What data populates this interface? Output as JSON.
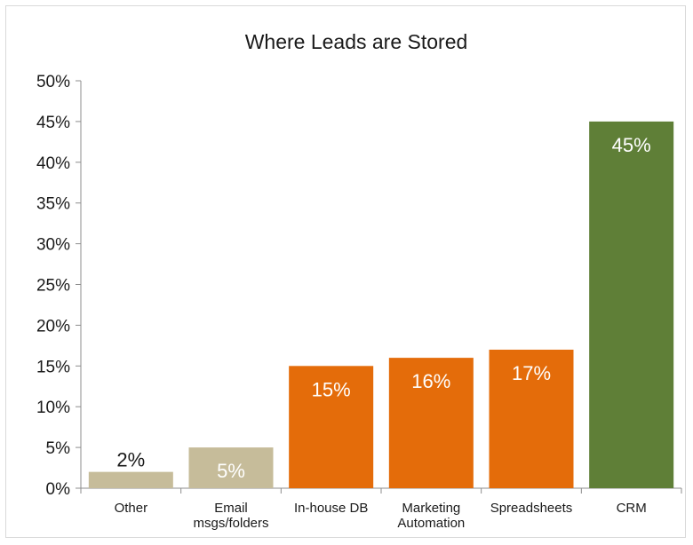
{
  "chart_data": {
    "type": "bar",
    "title": "Where Leads are Stored",
    "xlabel": "",
    "ylabel": "",
    "ylim": [
      0,
      50
    ],
    "y_ticks": [
      "0%",
      "5%",
      "10%",
      "15%",
      "20%",
      "25%",
      "30%",
      "35%",
      "40%",
      "45%",
      "50%"
    ],
    "categories": [
      [
        "Other"
      ],
      [
        "Email",
        "msgs/folders"
      ],
      [
        "In-house DB"
      ],
      [
        "Marketing",
        "Automation"
      ],
      [
        "Spreadsheets"
      ],
      [
        "CRM"
      ]
    ],
    "values": [
      2,
      5,
      15,
      16,
      17,
      45
    ],
    "data_labels": [
      "2%",
      "5%",
      "15%",
      "16%",
      "17%",
      "45%"
    ],
    "bar_colors": [
      "#c6bc9a",
      "#c6bc9a",
      "#e46c0a",
      "#e46c0a",
      "#e46c0a",
      "#5f7f37"
    ],
    "label_colors": [
      "#1a1a1a",
      "#ffffff",
      "#ffffff",
      "#ffffff",
      "#ffffff",
      "#ffffff"
    ],
    "grid": false,
    "legend": "none"
  }
}
